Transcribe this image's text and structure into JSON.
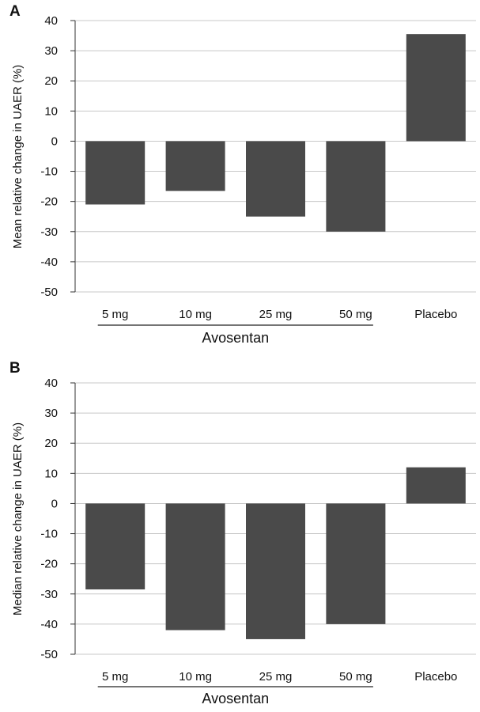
{
  "chart_data": [
    {
      "panel": "A",
      "type": "bar",
      "ylabel": "Mean relative change in UAER (%)",
      "categories": [
        "5 mg",
        "10 mg",
        "25 mg",
        "50 mg",
        "Placebo"
      ],
      "values": [
        -21,
        -16.5,
        -25,
        -30,
        35.5
      ],
      "group_label": "Avosentan",
      "group_categories": [
        "5 mg",
        "10 mg",
        "25 mg",
        "50 mg"
      ],
      "yticks": [
        "40",
        "30",
        "20",
        "10",
        "0",
        "-10",
        "-20",
        "-30",
        "-40",
        "-50"
      ],
      "ylim": [
        -50,
        40
      ],
      "grid": true,
      "bar_color": "#4a4a4a"
    },
    {
      "panel": "B",
      "type": "bar",
      "ylabel": "Median relative change in UAER (%)",
      "categories": [
        "5 mg",
        "10 mg",
        "25 mg",
        "50 mg",
        "Placebo"
      ],
      "values": [
        -28.5,
        -42,
        -45,
        -40,
        12
      ],
      "group_label": "Avosentan",
      "group_categories": [
        "5 mg",
        "10 mg",
        "25 mg",
        "50 mg"
      ],
      "yticks": [
        "40",
        "30",
        "20",
        "10",
        "0",
        "-10",
        "-20",
        "-30",
        "-40",
        "-50"
      ],
      "ylim": [
        -50,
        40
      ],
      "grid": true,
      "bar_color": "#4a4a4a"
    }
  ]
}
